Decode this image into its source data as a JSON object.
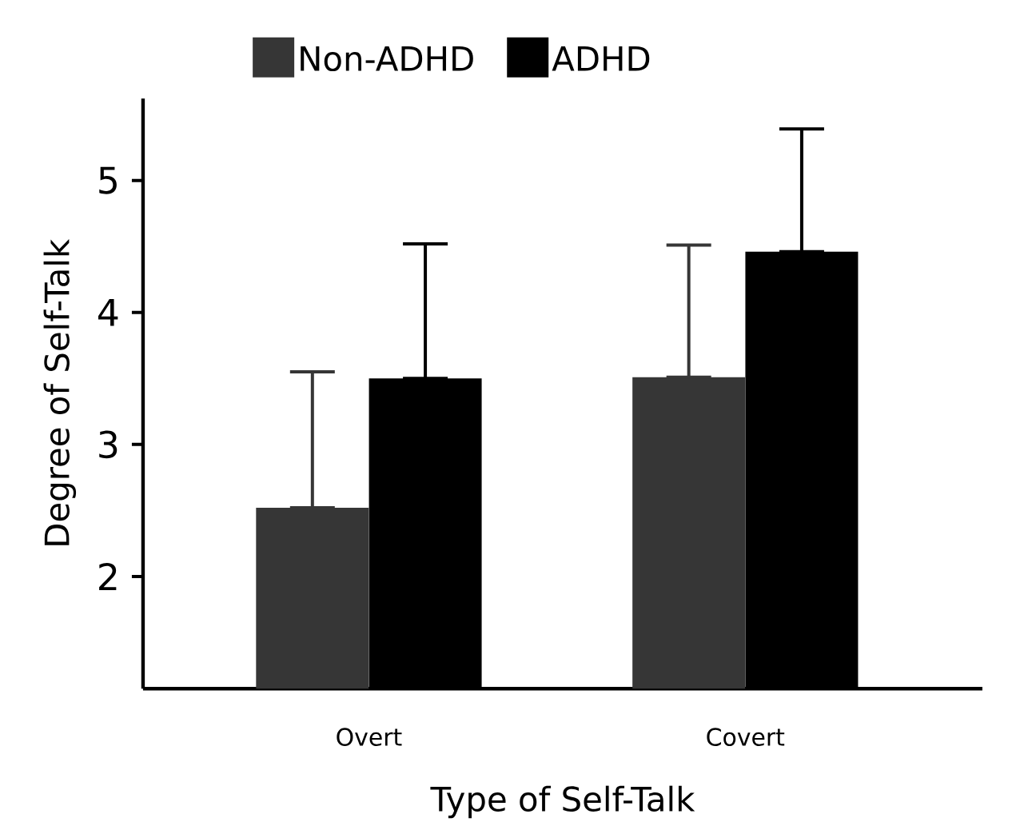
{
  "chart_data": {
    "type": "bar",
    "xlabel": "Type of Self-Talk",
    "ylabel": "Degree of Self-Talk",
    "categories": [
      "Overt",
      "Covert"
    ],
    "series": [
      {
        "name": "Non-ADHD",
        "color": "#363636",
        "values": [
          2.52,
          3.51
        ],
        "errors": [
          [
            2.52,
            3.55
          ],
          [
            3.51,
            4.51
          ]
        ]
      },
      {
        "name": "ADHD",
        "color": "#000000",
        "values": [
          3.5,
          4.46
        ],
        "errors": [
          [
            3.5,
            4.52
          ],
          [
            4.46,
            5.39
          ]
        ]
      }
    ],
    "ylim": [
      1.15,
      5.62
    ],
    "yticks": [
      2,
      3,
      4,
      5
    ],
    "legend": "top",
    "grid": false
  }
}
